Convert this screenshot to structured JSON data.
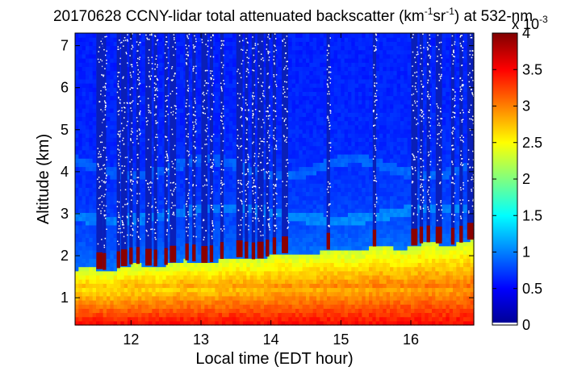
{
  "chart_data": {
    "type": "heatmap",
    "title": {
      "date": "20170628",
      "instrument": "CCNY-lidar total attenuated backscatter (km",
      "unit_exp1": "-1",
      "unit_mid": "sr",
      "unit_exp2": "-1",
      "tail": ") at 532-nm"
    },
    "xlabel": "Local time (EDT hour)",
    "ylabel": "Altitude (km)",
    "xlim": [
      11.2,
      16.9
    ],
    "ylim": [
      0.35,
      7.3
    ],
    "x_ticks": [
      12,
      13,
      14,
      15,
      16
    ],
    "x_tick_labels": [
      "12",
      "13",
      "14",
      "15",
      "16"
    ],
    "y_ticks": [
      1,
      2,
      3,
      4,
      5,
      6,
      7
    ],
    "y_tick_labels": [
      "1",
      "2",
      "3",
      "4",
      "5",
      "6",
      "7"
    ],
    "colorbar": {
      "min": 0,
      "max": 4,
      "ticks": [
        0,
        0.5,
        1,
        1.5,
        2,
        2.5,
        3,
        3.5,
        4
      ],
      "tick_labels": [
        "0",
        "0.5",
        "1",
        "1.5",
        "2",
        "2.5",
        "3",
        "3.5",
        "4"
      ],
      "multiplier_base": "x 10",
      "multiplier_exp": "-3",
      "colormap": "jet"
    },
    "features": {
      "boundary_layer_top_km": [
        1.6,
        2.4
      ],
      "aerosol_layers_km": [
        3.0,
        4.1
      ],
      "cloud_base_km": [
        1.7,
        2.6
      ]
    }
  }
}
